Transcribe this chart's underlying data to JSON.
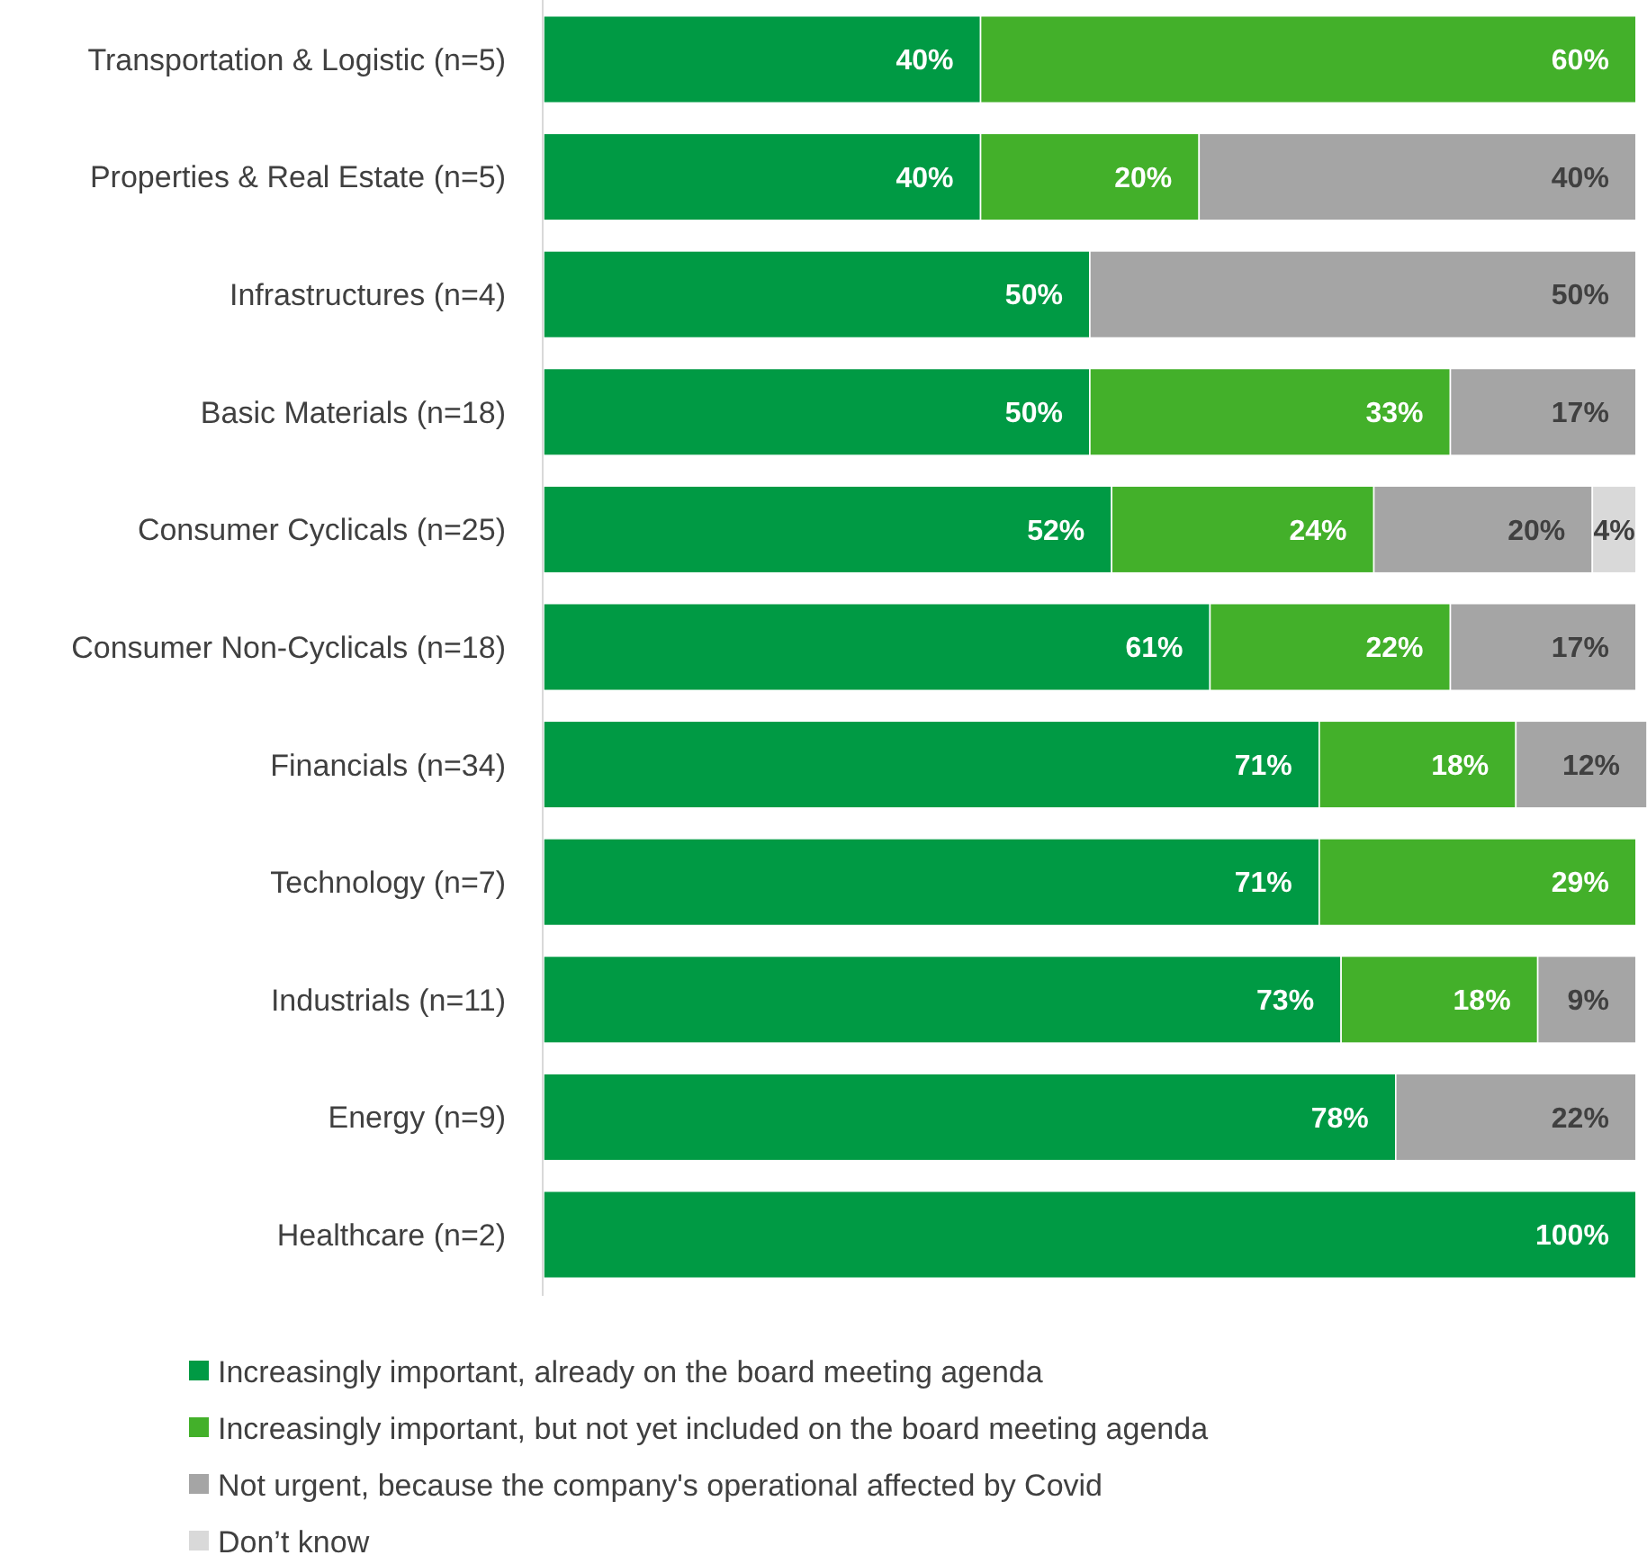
{
  "chart_data": {
    "type": "bar",
    "orientation": "horizontal",
    "stacked": true,
    "legend": "bottom",
    "tick_labels": "y",
    "categories": [
      "Transportation & Logistic (n=5)",
      "Properties & Real Estate (n=5)",
      "Infrastructures (n=4)",
      "Basic Materials (n=18)",
      "Consumer Cyclicals (n=25)",
      "Consumer Non-Cyclicals (n=18)",
      "Financials (n=34)",
      "Technology (n=7)",
      "Industrials (n=11)",
      "Energy (n=9)",
      "Healthcare (n=2)"
    ],
    "series": [
      {
        "name": "Increasingly important, already on the board meeting agenda",
        "color": "#009a44",
        "values": [
          40,
          40,
          50,
          50,
          52,
          61,
          71,
          71,
          73,
          78,
          100
        ],
        "value_labels": [
          "40%",
          "40%",
          "50%",
          "50%",
          "52%",
          "61%",
          "71%",
          "71%",
          "73%",
          "78%",
          "100%"
        ]
      },
      {
        "name": "Increasingly important, but not yet included on the board meeting agenda",
        "color": "#43b02a",
        "values": [
          60,
          20,
          null,
          33,
          24,
          22,
          18,
          29,
          18,
          null,
          null
        ],
        "value_labels": [
          "60%",
          "20%",
          null,
          "33%",
          "24%",
          "22%",
          "18%",
          "29%",
          "18%",
          null,
          null
        ]
      },
      {
        "name": "Not urgent, because the company's operational affected by Covid",
        "color": "#a5a5a5",
        "values": [
          null,
          40,
          50,
          17,
          20,
          17,
          12,
          null,
          9,
          22,
          null
        ],
        "value_labels": [
          null,
          "40%",
          "50%",
          "17%",
          "20%",
          "17%",
          "12%",
          null,
          "9%",
          "22%",
          null
        ]
      },
      {
        "name": "Don’t know",
        "color": "#d9d9d9",
        "values": [
          null,
          null,
          null,
          null,
          4,
          null,
          null,
          null,
          null,
          null,
          null
        ],
        "value_labels": [
          null,
          null,
          null,
          null,
          "4%",
          null,
          null,
          null,
          null,
          null,
          null
        ]
      }
    ]
  }
}
